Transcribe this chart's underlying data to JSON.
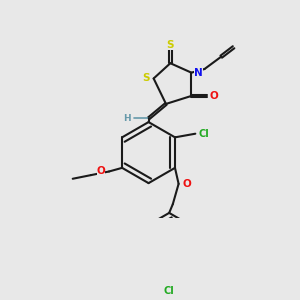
{
  "bg_color": "#e8e8e8",
  "bond_color": "#1a1a1a",
  "atom_colors": {
    "S": "#cccc00",
    "N": "#1111ee",
    "O": "#ee1111",
    "Cl": "#22aa22",
    "H": "#6699aa"
  },
  "lw": 1.5,
  "fs": 7.0
}
